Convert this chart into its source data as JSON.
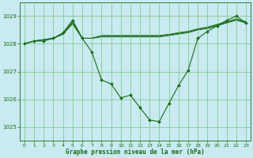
{
  "title": "Graphe pression niveau de la mer (hPa)",
  "bg_color": "#c8eaf0",
  "grid_color": "#66bb66",
  "line_color": "#1a6b1a",
  "marker_color": "#1a6b1a",
  "xlim": [
    -0.5,
    23.5
  ],
  "ylim": [
    1024.5,
    1029.5
  ],
  "yticks": [
    1025,
    1026,
    1027,
    1028,
    1029
  ],
  "xticks": [
    0,
    1,
    2,
    3,
    4,
    5,
    6,
    7,
    8,
    9,
    10,
    11,
    12,
    13,
    14,
    15,
    16,
    17,
    18,
    19,
    20,
    21,
    22,
    23
  ],
  "main_y": [
    1028.0,
    1028.1,
    1028.1,
    1028.2,
    1028.4,
    1028.85,
    1028.2,
    1027.7,
    1026.7,
    1026.55,
    1026.05,
    1026.15,
    1025.7,
    1025.25,
    1025.2,
    1025.85,
    1026.5,
    1027.05,
    1028.2,
    1028.45,
    1028.65,
    1028.85,
    1029.0,
    1028.75
  ],
  "flat_lines": [
    [
      1028.0,
      1028.1,
      1028.15,
      1028.2,
      1028.35,
      1028.8,
      1028.2,
      1028.2,
      1028.25,
      1028.25,
      1028.25,
      1028.25,
      1028.25,
      1028.25,
      1028.25,
      1028.3,
      1028.35,
      1028.4,
      1028.5,
      1028.55,
      1028.65,
      1028.75,
      1028.85,
      1028.75
    ],
    [
      1028.0,
      1028.1,
      1028.15,
      1028.2,
      1028.35,
      1028.75,
      1028.2,
      1028.2,
      1028.28,
      1028.28,
      1028.28,
      1028.28,
      1028.28,
      1028.28,
      1028.28,
      1028.32,
      1028.38,
      1028.43,
      1028.52,
      1028.58,
      1028.68,
      1028.78,
      1028.88,
      1028.78
    ],
    [
      1028.0,
      1028.1,
      1028.15,
      1028.2,
      1028.35,
      1028.72,
      1028.2,
      1028.2,
      1028.3,
      1028.3,
      1028.3,
      1028.3,
      1028.3,
      1028.3,
      1028.3,
      1028.34,
      1028.4,
      1028.45,
      1028.54,
      1028.6,
      1028.7,
      1028.8,
      1028.9,
      1028.8
    ]
  ]
}
